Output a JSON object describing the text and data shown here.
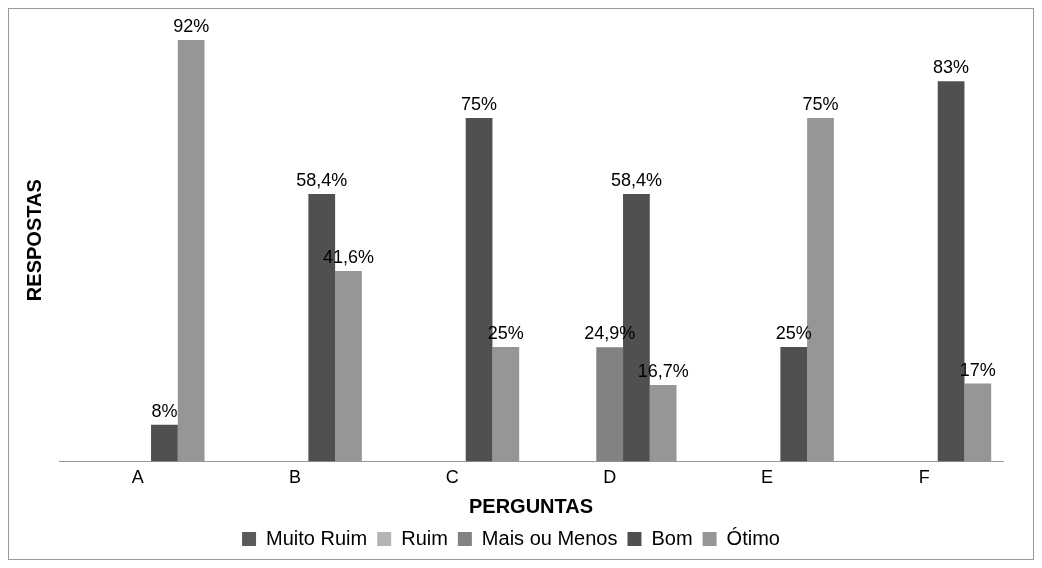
{
  "chart_data": {
    "type": "bar",
    "xlabel": "PERGUNTAS",
    "ylabel": "RESPOSTAS",
    "categories": [
      "A",
      "B",
      "C",
      "D",
      "E",
      "F"
    ],
    "series": [
      {
        "name": "Muito Ruim",
        "color": "#5a5a5a",
        "values": [
          null,
          null,
          null,
          null,
          null,
          null
        ],
        "value_labels": [
          null,
          null,
          null,
          null,
          null,
          null
        ]
      },
      {
        "name": "Ruim",
        "color": "#b4b4b4",
        "values": [
          null,
          null,
          null,
          null,
          null,
          null
        ],
        "value_labels": [
          null,
          null,
          null,
          null,
          null,
          null
        ]
      },
      {
        "name": "Mais ou Menos",
        "color": "#828282",
        "values": [
          null,
          null,
          null,
          24.9,
          null,
          null
        ],
        "value_labels": [
          null,
          null,
          null,
          "24,9%",
          null,
          null
        ]
      },
      {
        "name": "Bom",
        "color": "#505050",
        "values": [
          8,
          58.4,
          75,
          58.4,
          25,
          83
        ],
        "value_labels": [
          "8%",
          "58,4%",
          "75%",
          "58,4%",
          "25%",
          "83%"
        ]
      },
      {
        "name": "Ótimo",
        "color": "#969696",
        "values": [
          92,
          41.6,
          25,
          16.7,
          75,
          17
        ],
        "value_labels": [
          "92%",
          "41,6%",
          "25%",
          "16,7%",
          "75%",
          "17%"
        ]
      }
    ],
    "legend": "bottom",
    "grid": false
  }
}
